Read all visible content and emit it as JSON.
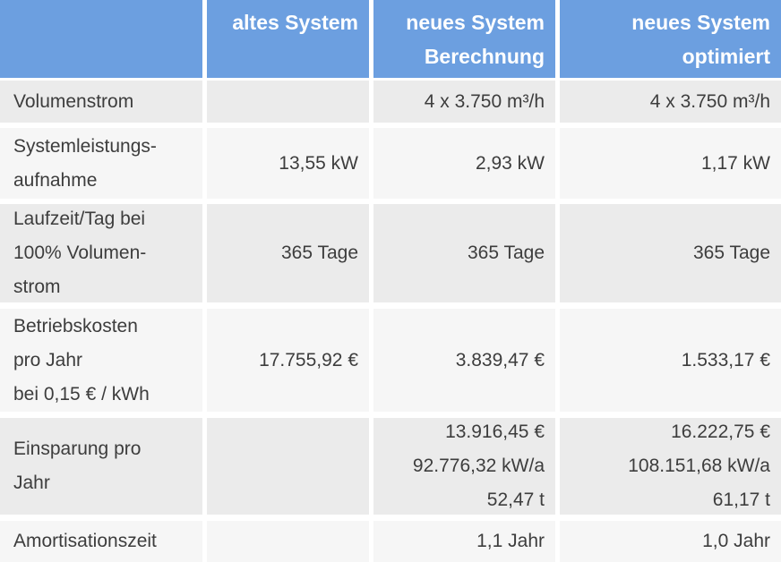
{
  "colors": {
    "header_bg": "#6c9fe0",
    "header_text": "#ffffff",
    "row_shade_dark": "#ebebeb",
    "row_shade_light": "#f6f6f6",
    "body_text": "#3d3d3d",
    "divider": "#ffffff"
  },
  "chart_data": {
    "type": "table",
    "columns": [
      "",
      "altes System",
      "neues System Berechnung",
      "neues System optimiert"
    ],
    "header_lines": [
      [],
      [
        "altes System"
      ],
      [
        "neues System",
        "Berechnung"
      ],
      [
        "neues System",
        "optimiert"
      ]
    ],
    "rows": [
      {
        "label": [
          "Volumenstrom"
        ],
        "values": [
          [],
          [
            "4 x 3.750 m³/h"
          ],
          [
            "4 x 3.750 m³/h"
          ]
        ]
      },
      {
        "label": [
          "Systemleistungs-",
          "aufnahme"
        ],
        "values": [
          [
            "13,55 kW"
          ],
          [
            "2,93 kW"
          ],
          [
            "1,17 kW"
          ]
        ]
      },
      {
        "label": [
          "Laufzeit/Tag bei",
          "100% Volumen-",
          "strom"
        ],
        "values": [
          [
            "365 Tage"
          ],
          [
            "365 Tage"
          ],
          [
            "365 Tage"
          ]
        ]
      },
      {
        "label": [
          "Betriebskosten",
          "pro Jahr",
          "bei 0,15 € / kWh"
        ],
        "values": [
          [
            "17.755,92 €"
          ],
          [
            "3.839,47 €"
          ],
          [
            "1.533,17 €"
          ]
        ]
      },
      {
        "label": [
          "Einsparung pro",
          "Jahr"
        ],
        "values": [
          [],
          [
            "13.916,45 €",
            "92.776,32 kW/a",
            "52,47 t"
          ],
          [
            "16.222,75 €",
            "108.151,68 kW/a",
            "61,17 t"
          ]
        ]
      },
      {
        "label": [
          "Amortisationszeit"
        ],
        "values": [
          [],
          [
            "1,1 Jahr"
          ],
          [
            "1,0 Jahr"
          ]
        ]
      }
    ]
  }
}
